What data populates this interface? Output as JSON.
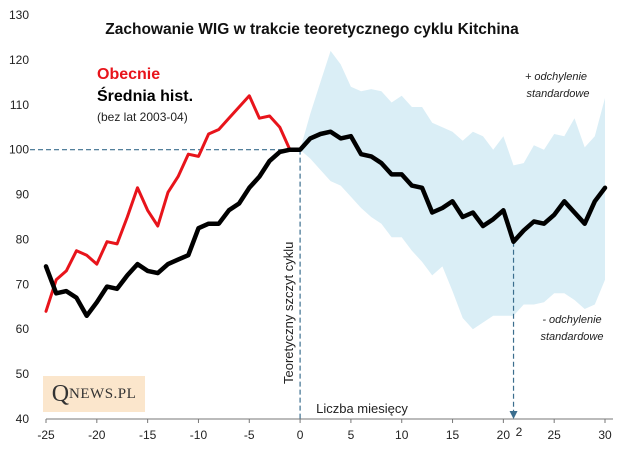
{
  "chart_data": {
    "type": "line",
    "title": "Zachowanie WIG w trakcie teoretycznego cyklu Kitchina",
    "xlabel": "Liczba miesięcy",
    "ylabel": "",
    "xlim": [
      -25,
      30
    ],
    "ylim": [
      40,
      130
    ],
    "x_ticks": [
      -25,
      -20,
      -15,
      -10,
      -5,
      0,
      5,
      10,
      15,
      20,
      25,
      30
    ],
    "y_ticks": [
      40,
      50,
      60,
      70,
      80,
      90,
      100,
      110,
      120,
      130
    ],
    "grid": false,
    "legend": {
      "current": "Obecnie",
      "average": "Średnia hist.",
      "average_note": "(bez lat 2003-04)"
    },
    "series": [
      {
        "name": "Obecnie",
        "color": "#e8141b",
        "x": [
          -25,
          -24,
          -23,
          -22,
          -21,
          -20,
          -19,
          -18,
          -17,
          -16,
          -15,
          -14,
          -13,
          -12,
          -11,
          -10,
          -9,
          -8,
          -7,
          -6,
          -5,
          -4,
          -3,
          -2,
          -1,
          0
        ],
        "y": [
          64,
          71,
          73,
          77.5,
          76.5,
          74.5,
          79.5,
          79,
          85,
          91.5,
          86.5,
          83,
          90.5,
          94,
          99,
          98.5,
          103.5,
          104.5,
          107,
          109.5,
          112,
          107,
          107.5,
          105,
          100,
          100
        ]
      },
      {
        "name": "Średnia hist.",
        "color": "#000000",
        "x": [
          -25,
          -24,
          -23,
          -22,
          -21,
          -20,
          -19,
          -18,
          -17,
          -16,
          -15,
          -14,
          -13,
          -12,
          -11,
          -10,
          -9,
          -8,
          -7,
          -6,
          -5,
          -4,
          -3,
          -2,
          -1,
          0,
          1,
          2,
          3,
          4,
          5,
          6,
          7,
          8,
          9,
          10,
          11,
          12,
          13,
          14,
          15,
          16,
          17,
          18,
          19,
          20,
          21,
          22,
          23,
          24,
          25,
          26,
          27,
          28,
          29,
          30
        ],
        "y": [
          74,
          68,
          68.5,
          67,
          63,
          66,
          69.5,
          69,
          72,
          74.5,
          73,
          72.5,
          74.5,
          75.5,
          76.5,
          82.5,
          83.5,
          83.5,
          86.5,
          88,
          91.5,
          94,
          97.5,
          99.5,
          100,
          100,
          102.5,
          103.5,
          104,
          102.5,
          103,
          99,
          98.5,
          97,
          94.5,
          94.5,
          92,
          91.5,
          86,
          87,
          88.5,
          85,
          86,
          83,
          84.5,
          86.5,
          79.5,
          82,
          84,
          83.5,
          85.5,
          88.5,
          86,
          83.5,
          88.5,
          91.5
        ]
      }
    ],
    "band": {
      "x": [
        0,
        1,
        2,
        3,
        4,
        5,
        6,
        7,
        8,
        9,
        10,
        11,
        12,
        13,
        14,
        15,
        16,
        17,
        18,
        19,
        20,
        21,
        22,
        23,
        24,
        25,
        26,
        27,
        28,
        29,
        30
      ],
      "upper": [
        100,
        108,
        115,
        122,
        119,
        114,
        113,
        113.5,
        113,
        110.5,
        112,
        109.5,
        109.5,
        106,
        105,
        104,
        102,
        104,
        103,
        100,
        103,
        96.5,
        97,
        101,
        100,
        103.5,
        103,
        107,
        100.5,
        103,
        111.5
      ],
      "lower": [
        100,
        98,
        95.5,
        93,
        92,
        89.5,
        87,
        85,
        83.5,
        80.5,
        80.5,
        77.5,
        75,
        72,
        74,
        68.5,
        62.5,
        60,
        61.5,
        63,
        63,
        63,
        65.5,
        65.5,
        66,
        68,
        68,
        66.5,
        64.5,
        65.5,
        71
      ],
      "upper_label": "+ odchylenie standardowe",
      "lower_label": "- odchylenie standardowe",
      "color": "#daeef6"
    },
    "annotations": {
      "peak_label": "Teoretyczny szczyt cyklu",
      "peak_x": 0,
      "trough_x": 21,
      "trough_label": "2",
      "reference_y": 100
    }
  },
  "logo": {
    "q": "Q",
    "rest": "NEWS.PL"
  }
}
